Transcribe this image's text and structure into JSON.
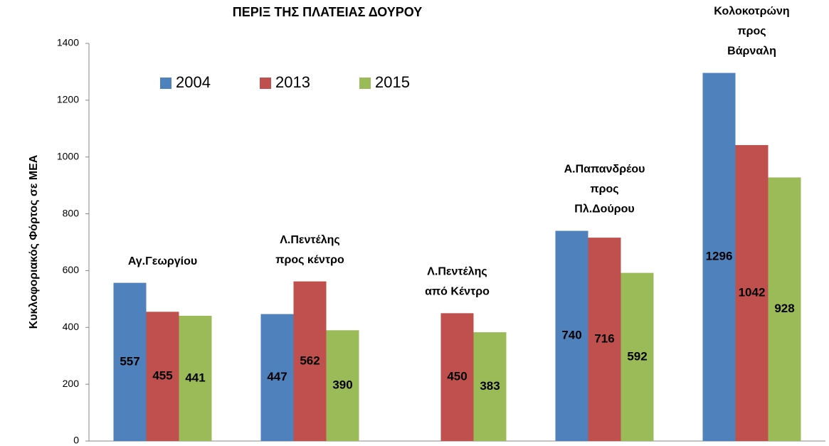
{
  "chart_data": {
    "type": "bar",
    "title": "ΠΕΡΙΞ ΤΗΣ ΠΛΑΤΕΙΑΣ ΔΟΥΡΟΥ",
    "y_label": "Κυκλοφοριακός Φόρτος σε ΜΕΑ",
    "categories": [
      [
        "Αγ.Γεωργίου"
      ],
      [
        "Λ.Πεντέλης",
        "προς κέντρο"
      ],
      [
        "Λ.Πεντέλης",
        "από Κέντρο"
      ],
      [
        "Α.Παπανδρέου",
        "προς",
        "Πλ.Δούρου"
      ],
      [
        "Κολοκοτρώνη",
        "προς",
        "Βάρναλη"
      ]
    ],
    "series": [
      {
        "name": "2004",
        "color": "#4f81bd",
        "values": [
          557,
          447,
          null,
          740,
          1296
        ]
      },
      {
        "name": "2013",
        "color": "#c0504d",
        "values": [
          455,
          562,
          450,
          716,
          1042
        ]
      },
      {
        "name": "2015",
        "color": "#9bbb59",
        "values": [
          441,
          390,
          383,
          592,
          928
        ]
      }
    ],
    "ylim": [
      0,
      1400
    ],
    "yticks": [
      0,
      200,
      400,
      600,
      800,
      1000,
      1200,
      1400
    ],
    "grid": false,
    "legend": "upper left"
  }
}
